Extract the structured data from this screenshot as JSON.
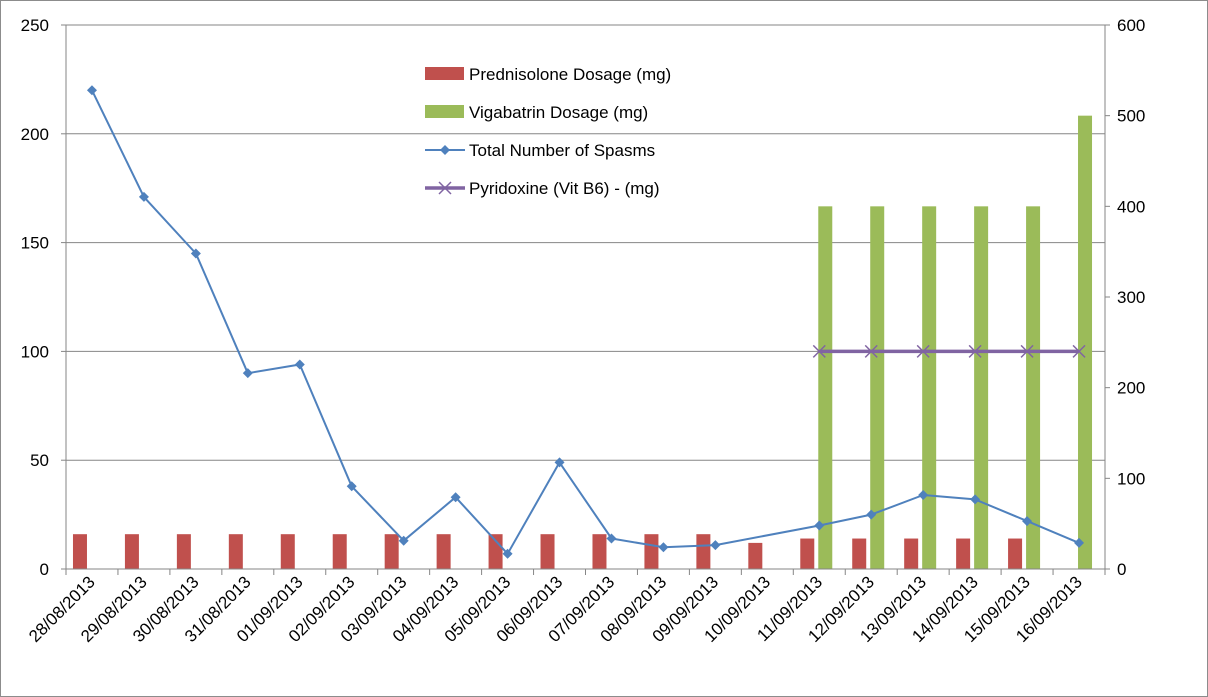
{
  "chart_data": {
    "type": "bar",
    "categories": [
      "28/08/2013",
      "29/08/2013",
      "30/08/2013",
      "31/08/2013",
      "01/09/2013",
      "02/09/2013",
      "03/09/2013",
      "04/09/2013",
      "05/09/2013",
      "06/09/2013",
      "07/09/2013",
      "08/09/2013",
      "09/09/2013",
      "10/09/2013",
      "11/09/2013",
      "12/09/2013",
      "13/09/2013",
      "14/09/2013",
      "15/09/2013",
      "16/09/2013"
    ],
    "y_left": {
      "ylim": [
        0,
        250
      ],
      "ticks": [
        "0",
        "50",
        "100",
        "150",
        "200",
        "250"
      ]
    },
    "y_right": {
      "ylim": [
        0,
        600
      ],
      "ticks": [
        "0",
        "100",
        "200",
        "300",
        "400",
        "500",
        "600"
      ]
    },
    "grid": true,
    "legend_position": "top-center",
    "series": [
      {
        "name": "Prednisolone Dosage (mg)",
        "kind": "bar",
        "axis": "left",
        "color": "#c0504d",
        "values": [
          16,
          16,
          16,
          16,
          16,
          16,
          16,
          16,
          16,
          16,
          16,
          16,
          16,
          12,
          14,
          14,
          14,
          14,
          14,
          null
        ]
      },
      {
        "name": "Vigabatrin Dosage (mg)",
        "kind": "bar",
        "axis": "right",
        "color": "#9bbb59",
        "values": [
          null,
          null,
          null,
          null,
          null,
          null,
          null,
          null,
          null,
          null,
          null,
          null,
          null,
          null,
          400,
          400,
          400,
          400,
          400,
          500
        ]
      },
      {
        "name": "Total Number of Spasms",
        "kind": "line",
        "axis": "left",
        "color": "#4f81bd",
        "marker": "diamond",
        "values": [
          220,
          171,
          145,
          90,
          94,
          38,
          13,
          33,
          7,
          49,
          14,
          10,
          11,
          null,
          20,
          25,
          34,
          32,
          22,
          12
        ]
      },
      {
        "name": "Pyridoxine  (Vit B6) - (mg)",
        "kind": "line",
        "axis": "right",
        "color": "#8064a2",
        "marker": "x",
        "values": [
          null,
          null,
          null,
          null,
          null,
          null,
          null,
          null,
          null,
          null,
          null,
          null,
          null,
          null,
          240,
          240,
          240,
          240,
          240,
          240
        ]
      }
    ]
  }
}
